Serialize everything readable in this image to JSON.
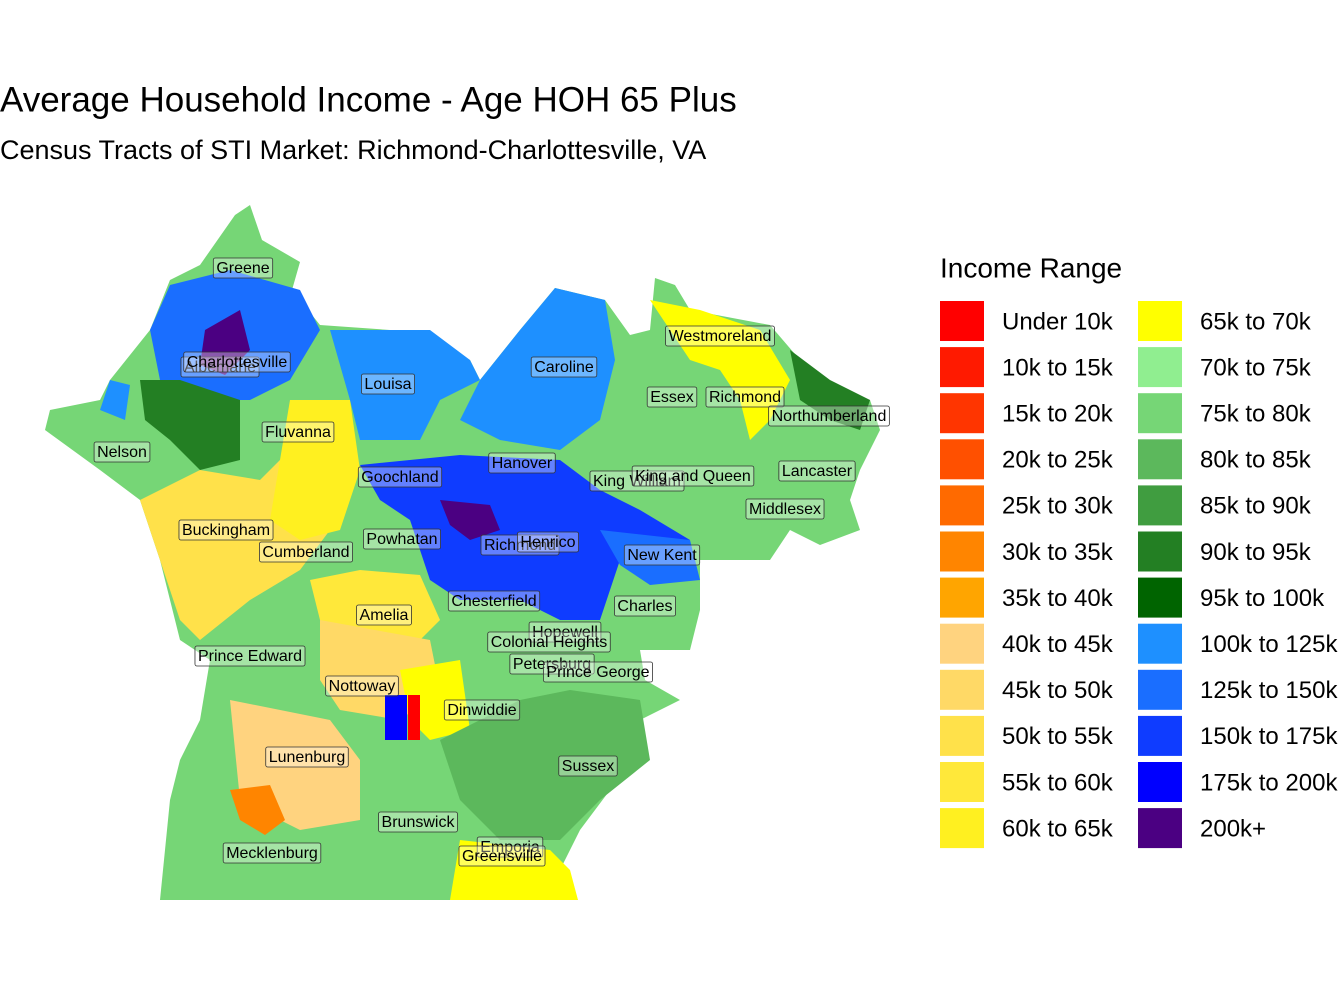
{
  "title": "Average Household Income - Age HOH 65 Plus",
  "subtitle": "Census Tracts of STI Market: Richmond-Charlottesville, VA",
  "legend": {
    "title": "Income Range",
    "items": [
      {
        "label": "Under 10k",
        "color": "#FF0000"
      },
      {
        "label": "10k to 15k",
        "color": "#FF1A00"
      },
      {
        "label": "15k to 20k",
        "color": "#FF3500"
      },
      {
        "label": "20k to 25k",
        "color": "#FF5000"
      },
      {
        "label": "25k to 30k",
        "color": "#FF6A00"
      },
      {
        "label": "30k to 35k",
        "color": "#FF8500"
      },
      {
        "label": "35k to 40k",
        "color": "#FFA500"
      },
      {
        "label": "40k to 45k",
        "color": "#FFD37F"
      },
      {
        "label": "45k to 50k",
        "color": "#FFD966"
      },
      {
        "label": "50k to 55k",
        "color": "#FFE14A"
      },
      {
        "label": "55k to 60k",
        "color": "#FFE83A"
      },
      {
        "label": "60k to 65k",
        "color": "#FFF020"
      },
      {
        "label": "65k to 70k",
        "color": "#FFFF00"
      },
      {
        "label": "70k to 75k",
        "color": "#90EE90"
      },
      {
        "label": "75k to 80k",
        "color": "#76D676"
      },
      {
        "label": "80k to 85k",
        "color": "#5CB85C"
      },
      {
        "label": "85k to 90k",
        "color": "#409D40"
      },
      {
        "label": "90k to 95k",
        "color": "#237F23"
      },
      {
        "label": "95k to 100k",
        "color": "#006400"
      },
      {
        "label": "100k to 125k",
        "color": "#1E90FF"
      },
      {
        "label": "125k to 150k",
        "color": "#1A6EFF"
      },
      {
        "label": "150k to 175k",
        "color": "#0F3CFF"
      },
      {
        "label": "175k to 200k",
        "color": "#0000FF"
      },
      {
        "label": "200k+",
        "color": "#4B0082"
      }
    ]
  },
  "counties": [
    "Greene",
    "Albemarle",
    "Charlottesville",
    "Louisa",
    "Caroline",
    "Westmoreland",
    "Essex",
    "Richmond",
    "Northumberland",
    "Nelson",
    "Fluvanna",
    "Hanover",
    "Goochland",
    "King William",
    "King and Queen",
    "Lancaster",
    "Middlesex",
    "Buckingham",
    "Cumberland",
    "Powhatan",
    "Richmond",
    "Henrico",
    "New Kent",
    "Chesterfield",
    "Charles",
    "Amelia",
    "Hopewell",
    "Colonial Heights",
    "Prince Edward",
    "Petersburg",
    "Prince George",
    "Nottoway",
    "Dinwiddie",
    "Lunenburg",
    "Sussex",
    "Brunswick",
    "Mecklenburg",
    "Emporia",
    "Greensville"
  ]
}
